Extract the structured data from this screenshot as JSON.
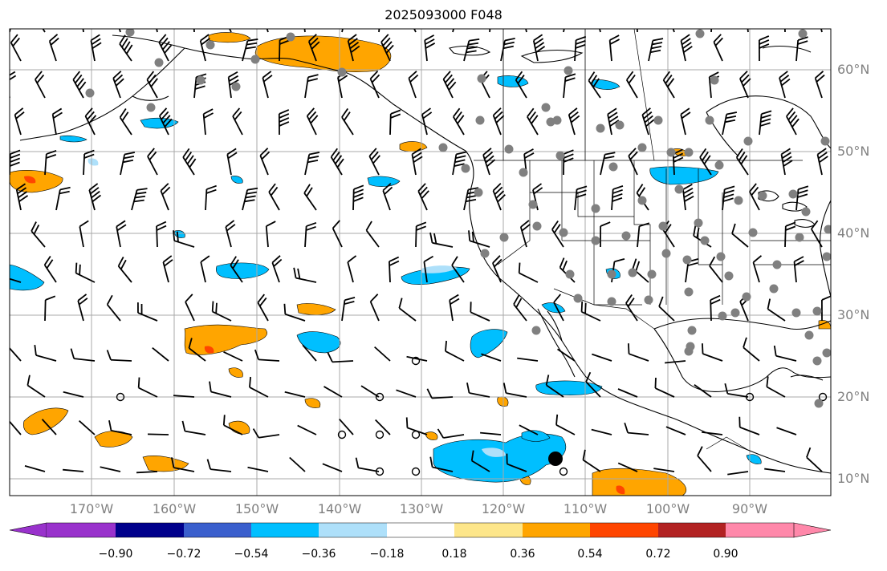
{
  "title": "2025093000 F048",
  "latitude_labels": [
    "60°N",
    "50°N",
    "40°N",
    "30°N",
    "20°N",
    "10°N"
  ],
  "longitude_labels": [
    "170°W",
    "160°W",
    "150°W",
    "140°W",
    "130°W",
    "120°W",
    "110°W",
    "100°W",
    "90°W"
  ],
  "colorbar": {
    "tick_labels": [
      "−0.90",
      "−0.72",
      "−0.54",
      "−0.36",
      "−0.18",
      "0.18",
      "0.36",
      "0.54",
      "0.72",
      "0.90"
    ],
    "colors": [
      "#9932cc",
      "#00008b",
      "#3a5fcd",
      "#00bfff",
      "#aee0fa",
      "#ffffff",
      "#fde68a",
      "#ffa500",
      "#ff4500",
      "#b22222",
      "#ff88aa"
    ]
  },
  "map": {
    "grid_color": "#a9a9a9",
    "station_color": "#808080",
    "fill_colors": {
      "negative": "#00bfff",
      "negative_light": "#aee0fa",
      "positive": "#ffa500",
      "positive_strong": "#ff4500"
    }
  }
}
